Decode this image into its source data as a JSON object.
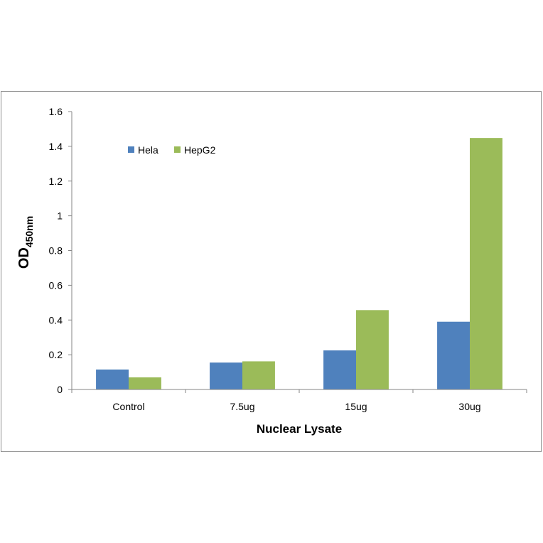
{
  "chart_data": {
    "type": "bar",
    "categories": [
      "Control",
      "7.5ug",
      "15ug",
      "30ug"
    ],
    "series": [
      {
        "name": "Hela",
        "values": [
          0.115,
          0.155,
          0.225,
          0.39
        ],
        "color": "#4f81bd"
      },
      {
        "name": "HepG2",
        "values": [
          0.07,
          0.162,
          0.457,
          1.448
        ],
        "color": "#9bbb59"
      }
    ],
    "xlabel": "Nuclear Lysate",
    "ylabel": {
      "main": "OD",
      "subscript": "450nm"
    },
    "ylim": [
      0,
      1.6
    ],
    "yticks": [
      "0",
      "0.2",
      "0.4",
      "0.6",
      "0.8",
      "1",
      "1.2",
      "1.4",
      "1.6"
    ],
    "grid": false,
    "legend_position": "top-left"
  }
}
